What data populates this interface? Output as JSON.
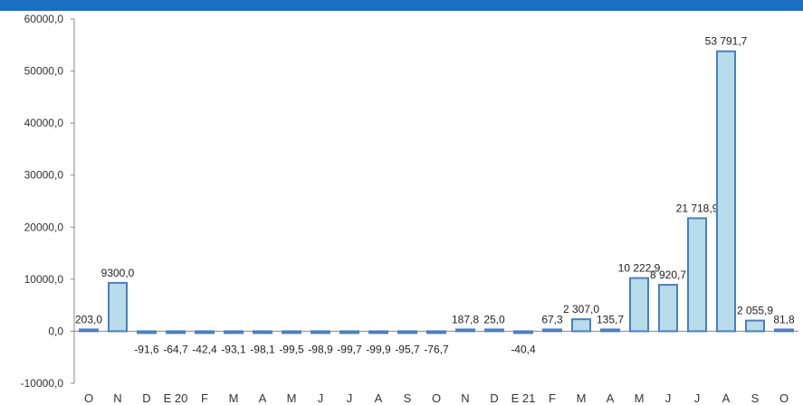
{
  "chart_data": {
    "type": "bar",
    "title": "",
    "xlabel": "",
    "ylabel": "",
    "ylim": [
      -10000,
      60000
    ],
    "yticks": [
      "60000,0",
      "50000,0",
      "40000,0",
      "30000,0",
      "20000,0",
      "10000,0",
      "0,0",
      "-10000,0"
    ],
    "ytick_values": [
      60000,
      50000,
      40000,
      30000,
      20000,
      10000,
      0,
      -10000
    ],
    "categories": [
      "O",
      "N",
      "D",
      "E 20",
      "F",
      "M",
      "A",
      "M",
      "J",
      "J",
      "A",
      "S",
      "O",
      "N",
      "D",
      "E 21",
      "F",
      "M",
      "A",
      "M",
      "J",
      "J",
      "A",
      "S",
      "O"
    ],
    "values": [
      203.0,
      9300.0,
      -91.6,
      -64.7,
      -42.4,
      -93.1,
      -98.1,
      -99.5,
      -98.9,
      -99.7,
      -99.9,
      -95.7,
      -76.7,
      187.8,
      25.0,
      -40.4,
      67.3,
      2307.0,
      135.7,
      10222.9,
      8920.7,
      21718.9,
      53791.7,
      2055.9,
      81.8
    ],
    "labels": [
      "203,0",
      "9300,0",
      "-91,6",
      "-64,7",
      "-42,4",
      "-93,1",
      "-98,1",
      "-99,5",
      "-98,9",
      "-99,7",
      "-99,9",
      "-95,7",
      "-76,7",
      "187,8",
      "25,0",
      "-40,4",
      "67,3",
      "2 307,0",
      "135,7",
      "10 222,9",
      "8 920,7",
      "21 718,9",
      "53 791,7",
      "2 055,9",
      "81,8"
    ],
    "colors": {
      "bar_fill": "#b7dcea",
      "bar_stroke": "#4a7fc1",
      "header": "#1a6fc4"
    }
  }
}
